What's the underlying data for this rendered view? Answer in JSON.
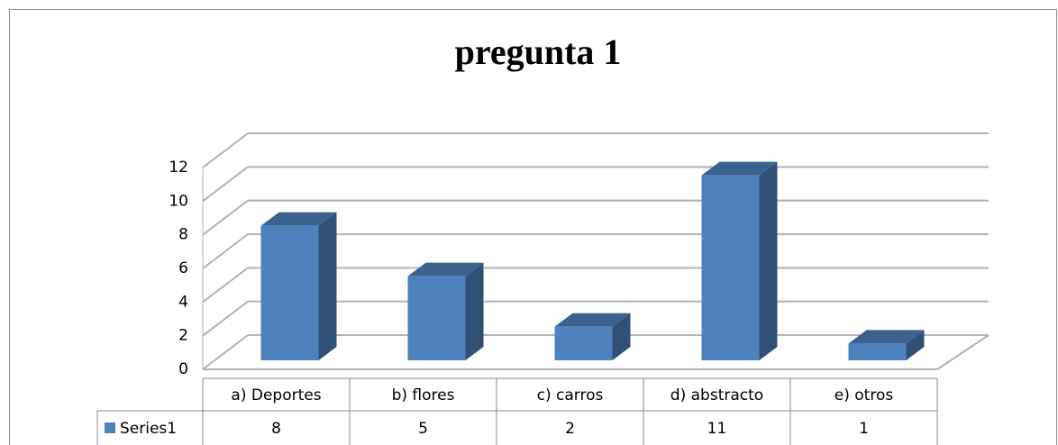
{
  "chart_data": {
    "type": "bar",
    "title": "pregunta 1",
    "categories": [
      "a) Deportes",
      "b) flores",
      "c) carros",
      "d) abstracto",
      "e) otros"
    ],
    "series": [
      {
        "name": "Series1",
        "color": "#4f81bd",
        "values": [
          8,
          5,
          2,
          11,
          1
        ]
      }
    ],
    "ylim": [
      0,
      12
    ],
    "yticks": [
      0,
      2,
      4,
      6,
      8,
      10,
      12
    ],
    "grid": true,
    "three_d": true,
    "data_table": true
  }
}
